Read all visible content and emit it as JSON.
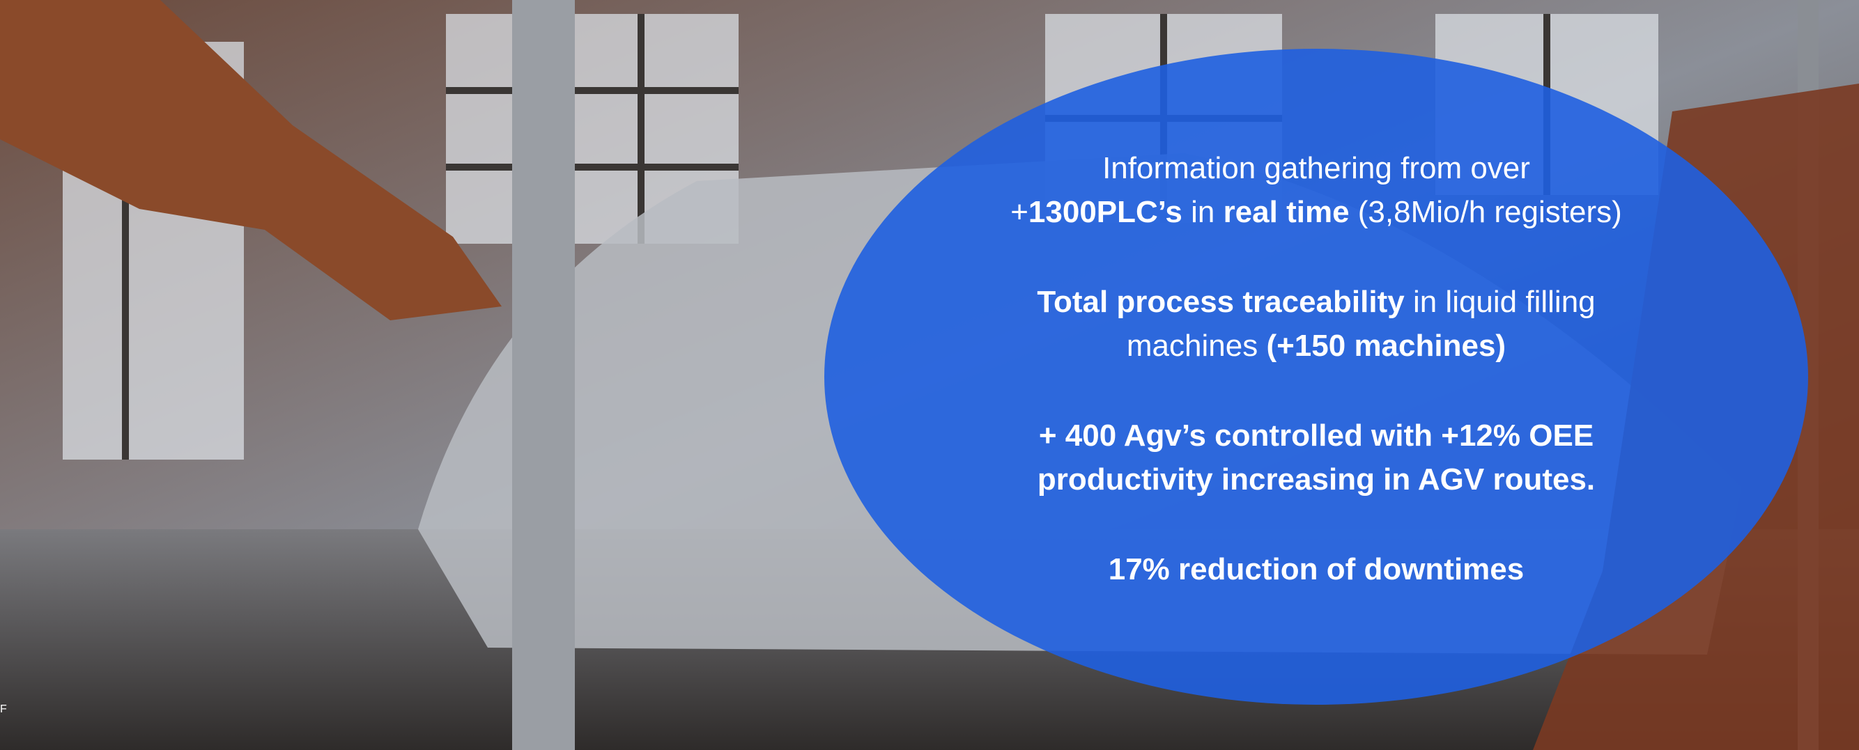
{
  "slide": {
    "paragraphs": [
      {
        "lines": [
          [
            {
              "text": "Information gathering from over",
              "bold": false
            }
          ],
          [
            {
              "text": "+",
              "bold": false
            },
            {
              "text": "1300PLC’s",
              "bold": true
            },
            {
              "text": " in ",
              "bold": false
            },
            {
              "text": "real time",
              "bold": true
            },
            {
              "text": " (3,8Mio/h registers)",
              "bold": false
            }
          ]
        ]
      },
      {
        "lines": [
          [
            {
              "text": "Total process traceability",
              "bold": true
            },
            {
              "text": " in liquid filling",
              "bold": false
            }
          ],
          [
            {
              "text": "machines ",
              "bold": false
            },
            {
              "text": "(+150 machines)",
              "bold": true
            }
          ]
        ]
      },
      {
        "lines": [
          [
            {
              "text": "+ 400 Agv’s controlled with +12% OEE",
              "bold": true
            }
          ],
          [
            {
              "text": "productivity increasing in AGV routes.",
              "bold": true
            }
          ]
        ]
      },
      {
        "lines": [
          [
            {
              "text": "17% reduction of downtimes",
              "bold": true
            }
          ]
        ]
      }
    ],
    "corner_mark": "F"
  }
}
